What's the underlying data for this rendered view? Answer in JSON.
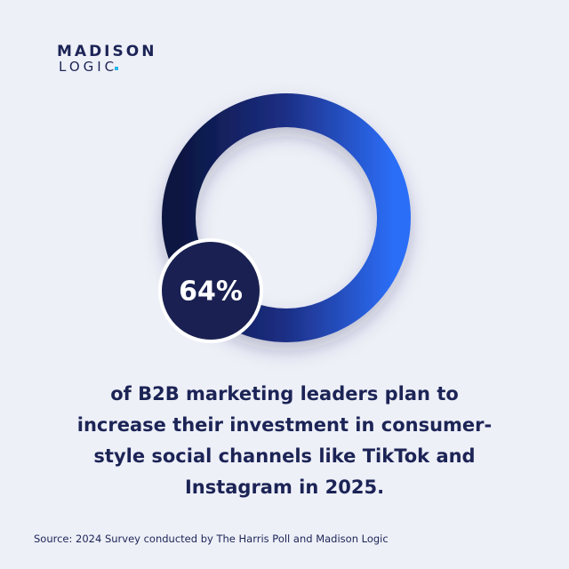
{
  "logo": {
    "line1": "MADISON",
    "line2": "LOGIC"
  },
  "stat": "64%",
  "statement": {
    "lines": [
      "of B2B marketing leaders plan to",
      "increase their investment in consumer-",
      "style social channels like TikTok and",
      "Instagram in 2025."
    ]
  },
  "source": "Source: 2024 Survey conducted by The Harris Poll and Madison Logic"
}
